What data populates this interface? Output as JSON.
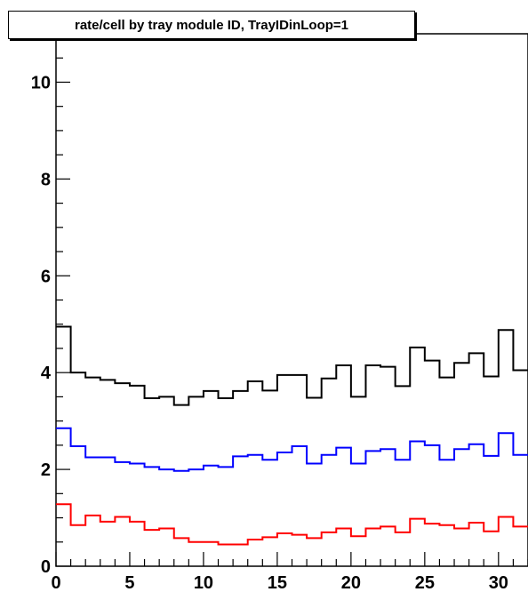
{
  "chart_data": {
    "type": "line",
    "title": "rate/cell by tray module ID, TrayIDinLoop=1",
    "xlabel": "",
    "ylabel": "",
    "xlim": [
      0,
      32
    ],
    "ylim": [
      0,
      11
    ],
    "x_ticks": [
      "0",
      "5",
      "10",
      "15",
      "20",
      "25",
      "30"
    ],
    "y_ticks": [
      "0",
      "2",
      "4",
      "6",
      "8",
      "10"
    ],
    "grid": false,
    "legend": "none",
    "series": [
      {
        "color": "#000000",
        "values": [
          4.95,
          4.0,
          3.9,
          3.85,
          3.78,
          3.73,
          3.47,
          3.5,
          3.33,
          3.5,
          3.62,
          3.47,
          3.62,
          3.82,
          3.63,
          3.95,
          3.95,
          3.48,
          3.88,
          4.15,
          3.5,
          4.15,
          4.12,
          3.72,
          4.52,
          4.25,
          3.9,
          4.2,
          4.4,
          3.92,
          4.88,
          4.05
        ]
      },
      {
        "color": "#0000ff",
        "values": [
          2.85,
          2.48,
          2.25,
          2.25,
          2.15,
          2.12,
          2.05,
          2.0,
          1.97,
          2.0,
          2.08,
          2.05,
          2.27,
          2.3,
          2.2,
          2.35,
          2.48,
          2.12,
          2.3,
          2.45,
          2.12,
          2.38,
          2.42,
          2.2,
          2.58,
          2.5,
          2.2,
          2.42,
          2.52,
          2.28,
          2.75,
          2.3
        ]
      },
      {
        "color": "#ff0000",
        "values": [
          1.28,
          0.85,
          1.05,
          0.92,
          1.02,
          0.92,
          0.75,
          0.78,
          0.58,
          0.5,
          0.5,
          0.45,
          0.45,
          0.55,
          0.6,
          0.68,
          0.65,
          0.58,
          0.7,
          0.78,
          0.62,
          0.78,
          0.82,
          0.7,
          0.98,
          0.88,
          0.85,
          0.78,
          0.9,
          0.72,
          1.02,
          0.82
        ]
      }
    ]
  }
}
